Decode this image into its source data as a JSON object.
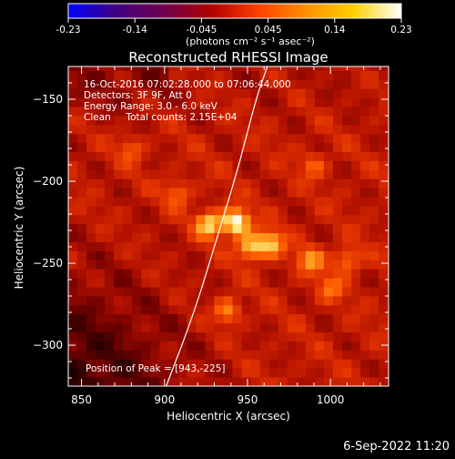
{
  "colorbar": {
    "ticks": [
      "-0.23",
      "-0.14",
      "-0.045",
      "0.045",
      "0.14",
      "0.23"
    ],
    "unit_label": "(photons cm⁻² s⁻¹ asec⁻²)",
    "colors": [
      "#0000ff",
      "#400080",
      "#700050",
      "#b00000",
      "#ff4000",
      "#ff9000",
      "#ffd000",
      "#ffffff"
    ]
  },
  "chart_data": {
    "type": "heatmap",
    "title": "Reconstructed RHESSI Image",
    "xlabel": "Heliocentric X (arcsec)",
    "ylabel": "Heliocentric Y (arcsec)",
    "xlim": [
      842,
      1035
    ],
    "ylim": [
      -325,
      -130
    ],
    "x_ticks": [
      "850",
      "900",
      "950",
      "1000"
    ],
    "y_ticks": [
      "-150",
      "-200",
      "-250",
      "-300"
    ],
    "annotations": [
      "16-Oct-2016 07:02:28.000 to 07:06:44.000",
      "Detectors: 3F 9F, Att 0",
      "Energy Range: 3.0 - 6.0 keV",
      "Clean     Total counts: 2.15E+04"
    ],
    "peak_label": "Position of Peak = [943,-225]",
    "peak": [
      943,
      -225
    ],
    "sources": [
      {
        "x": 943,
        "y": -225,
        "intensity": 1.0
      },
      {
        "x": 927,
        "y": -226,
        "intensity": 0.75
      },
      {
        "x": 952,
        "y": -240,
        "intensity": 0.7
      },
      {
        "x": 964,
        "y": -238,
        "intensity": 0.65
      },
      {
        "x": 988,
        "y": -248,
        "intensity": 0.5
      },
      {
        "x": 1010,
        "y": -248,
        "intensity": 0.45
      },
      {
        "x": 938,
        "y": -279,
        "intensity": 0.5
      },
      {
        "x": 1000,
        "y": -265,
        "intensity": 0.35
      },
      {
        "x": 908,
        "y": -207,
        "intensity": 0.35
      },
      {
        "x": 880,
        "y": -180,
        "intensity": 0.3
      },
      {
        "x": 990,
        "y": -190,
        "intensity": 0.3
      }
    ],
    "limb_curve": [
      [
        901,
        -325
      ],
      [
        918,
        -280
      ],
      [
        933,
        -230
      ],
      [
        945,
        -190
      ],
      [
        955,
        -150
      ],
      [
        962,
        -130
      ]
    ],
    "colormap": [
      "#000000",
      "#300000",
      "#700000",
      "#b01000",
      "#e03000",
      "#ff6000",
      "#ffa020",
      "#ffe070",
      "#ffffff"
    ]
  },
  "footer": {
    "date": "6-Sep-2022 11:20"
  }
}
